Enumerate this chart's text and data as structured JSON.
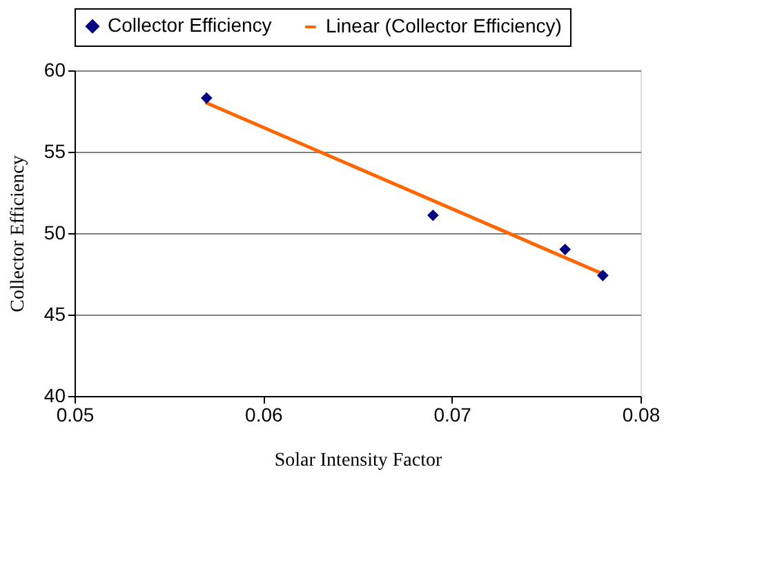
{
  "chart_data": {
    "type": "scatter",
    "xlabel": "Solar Intensity Factor",
    "ylabel": "Collector Efficiency",
    "xlim": [
      0.05,
      0.08
    ],
    "xticks": [
      0.05,
      0.06,
      0.07,
      0.08
    ],
    "ylim": [
      40,
      60
    ],
    "yticks": [
      40,
      45,
      50,
      55,
      60
    ],
    "grid": "y",
    "legend": "top",
    "series": [
      {
        "name": "Collector Efficiency",
        "marker": "diamond",
        "color": "#000080",
        "x": [
          0.057,
          0.069,
          0.076,
          0.078
        ],
        "values": [
          58.3,
          51.1,
          49.0,
          47.4
        ]
      },
      {
        "name": "Linear (Collector Efficiency)",
        "type": "line",
        "color": "#ff6600",
        "marker": "none",
        "x": [
          0.057,
          0.078
        ],
        "values": [
          58.0,
          47.5
        ]
      }
    ]
  }
}
